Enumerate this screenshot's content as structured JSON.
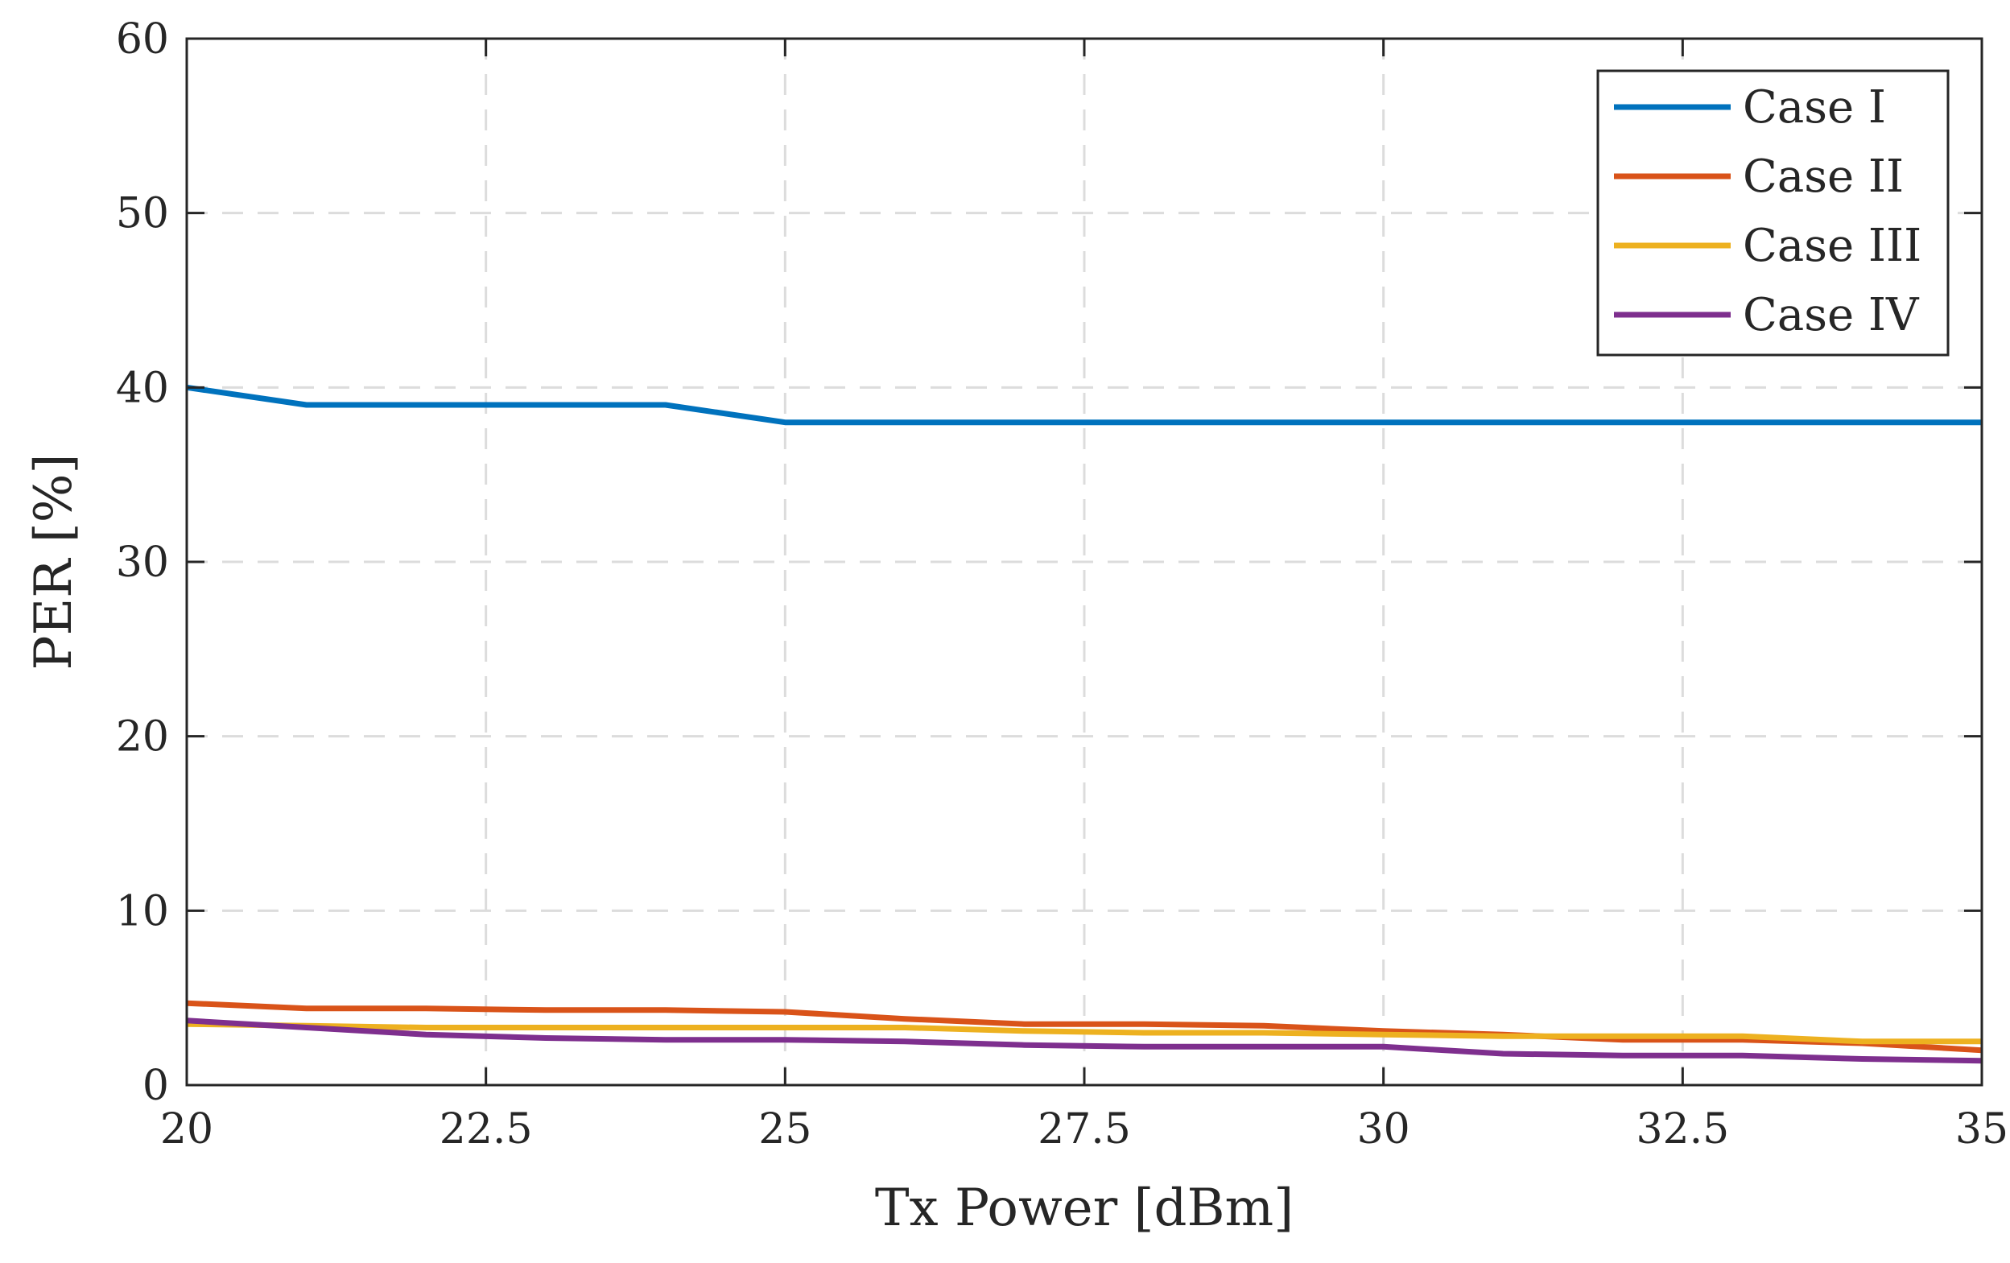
{
  "chart_data": {
    "type": "line",
    "title": "",
    "xlabel": "Tx Power [dBm]",
    "ylabel": "PER [%]",
    "xlim": [
      20,
      35
    ],
    "ylim": [
      0,
      60
    ],
    "xticks": [
      20,
      22.5,
      25,
      27.5,
      30,
      32.5,
      35
    ],
    "xtick_labels": [
      "20",
      "22.5",
      "25",
      "27.5",
      "30",
      "32.5",
      "35"
    ],
    "yticks": [
      0,
      10,
      20,
      30,
      40,
      50,
      60
    ],
    "ytick_labels": [
      "0",
      "10",
      "20",
      "30",
      "40",
      "50",
      "60"
    ],
    "grid": true,
    "legend_position": "top-right",
    "x": [
      20,
      21,
      22,
      23,
      24,
      25,
      26,
      27,
      28,
      29,
      30,
      31,
      32,
      33,
      34,
      35
    ],
    "series": [
      {
        "name": "Case I",
        "color": "#0072BD",
        "values": [
          40,
          39,
          39,
          39,
          39,
          38,
          38,
          38,
          38,
          38,
          38,
          38,
          38,
          38,
          38,
          38
        ]
      },
      {
        "name": "Case II",
        "color": "#D95319",
        "values": [
          4.7,
          4.4,
          4.4,
          4.3,
          4.3,
          4.2,
          3.8,
          3.5,
          3.5,
          3.4,
          3.1,
          2.9,
          2.6,
          2.6,
          2.4,
          2.0
        ]
      },
      {
        "name": "Case III",
        "color": "#EDB120",
        "values": [
          3.5,
          3.4,
          3.3,
          3.3,
          3.3,
          3.3,
          3.3,
          3.1,
          3.0,
          3.0,
          2.9,
          2.8,
          2.8,
          2.8,
          2.5,
          2.5
        ]
      },
      {
        "name": "Case IV",
        "color": "#7E2F8E",
        "values": [
          3.7,
          3.3,
          2.9,
          2.7,
          2.6,
          2.6,
          2.5,
          2.3,
          2.2,
          2.2,
          2.2,
          1.8,
          1.7,
          1.7,
          1.5,
          1.4
        ]
      }
    ]
  }
}
